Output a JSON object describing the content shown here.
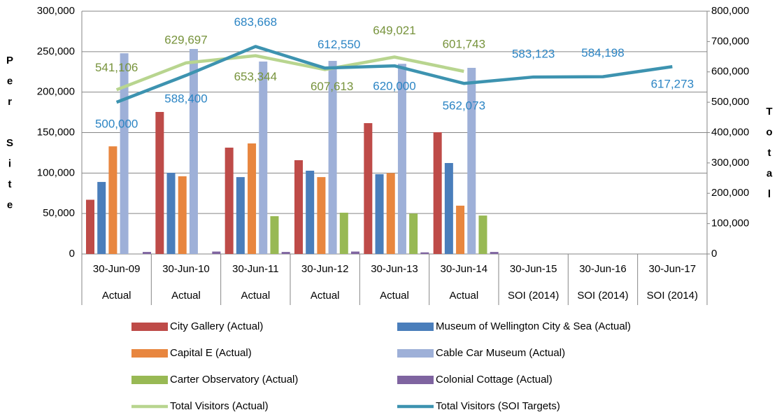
{
  "chart_data": {
    "type": "bar",
    "categories": [
      "30-Jun-09",
      "30-Jun-10",
      "30-Jun-11",
      "30-Jun-12",
      "30-Jun-13",
      "30-Jun-14",
      "30-Jun-15",
      "30-Jun-16",
      "30-Jun-17"
    ],
    "category_groups": [
      "Actual",
      "Actual",
      "Actual",
      "Actual",
      "Actual",
      "Actual",
      "SOI (2014)",
      "SOI (2014)",
      "SOI (2014)"
    ],
    "y_label": "Per Site",
    "y2_label": "Total",
    "ylim": [
      0,
      300000
    ],
    "yticks": [
      0,
      {
        "value": 50000,
        "label": "50,000"
      },
      {
        "value": 100000,
        "label": "100,000"
      },
      {
        "value": 150000,
        "label": "150,000"
      },
      {
        "value": 200000,
        "label": "200,000"
      },
      {
        "value": 250000,
        "label": "250,000"
      },
      {
        "value": 300000,
        "label": "300,000"
      }
    ],
    "y2lim": [
      0,
      800000
    ],
    "y2ticks": [
      0,
      {
        "value": 100000,
        "label": "100,000"
      },
      {
        "value": 200000,
        "label": "200,000"
      },
      {
        "value": 300000,
        "label": "300,000"
      },
      {
        "value": 400000,
        "label": "400,000"
      },
      {
        "value": 500000,
        "label": "500,000"
      },
      {
        "value": 600000,
        "label": "600,000"
      },
      {
        "value": 700000,
        "label": "700,000"
      },
      {
        "value": 800000,
        "label": "800,000"
      }
    ],
    "grid": true,
    "series": [
      {
        "name": "City Gallery (Actual)",
        "color": "#be4b48",
        "values": [
          67000,
          175500,
          131400,
          115900,
          161700,
          150400,
          null,
          null,
          null
        ]
      },
      {
        "name": "Museum of Wellington City & Sea (Actual)",
        "color": "#4a7ebb",
        "values": [
          89000,
          100300,
          95000,
          102900,
          98600,
          112400,
          null,
          null,
          null
        ]
      },
      {
        "name": "Capital E (Actual)",
        "color": "#e8863f",
        "values": [
          133000,
          96000,
          136600,
          95000,
          100000,
          59700,
          null,
          null,
          null
        ]
      },
      {
        "name": "Cable Car Museum (Actual)",
        "color": "#9eb0d8",
        "values": [
          248000,
          253300,
          237800,
          238600,
          235000,
          230000,
          null,
          null,
          null
        ]
      },
      {
        "name": "Carter Observatory (Actual)",
        "color": "#98b954",
        "values": [
          null,
          null,
          46700,
          51000,
          50000,
          47500,
          null,
          null,
          null
        ]
      },
      {
        "name": "Colonial Cottage (Actual)",
        "color": "#7f64a0",
        "values": [
          2500,
          3000,
          2500,
          3000,
          2000,
          2500,
          null,
          null,
          null
        ]
      },
      {
        "name": "Total Visitors (Actual)",
        "type": "line",
        "axis": "y2",
        "color": "#b8d58f",
        "label_color": "#77933c",
        "values": [
          541106,
          629697,
          653344,
          607613,
          649021,
          601743,
          null,
          null,
          null
        ],
        "value_labels": [
          "541,106",
          "629,697",
          "653,344",
          "607,613",
          "649,021",
          "601,743",
          null,
          null,
          null
        ]
      },
      {
        "name": "Total Visitors (SOI Targets)",
        "type": "line",
        "axis": "y2",
        "color": "#3d93b0",
        "label_color": "#2c85c4",
        "values": [
          500000,
          588400,
          683668,
          612550,
          620000,
          562073,
          583123,
          584198,
          617273
        ],
        "value_labels": [
          "500,000",
          "588,400",
          "683,668",
          "612,550",
          "620,000",
          "562,073",
          "583,123",
          "584,198",
          "617,273"
        ]
      }
    ]
  }
}
